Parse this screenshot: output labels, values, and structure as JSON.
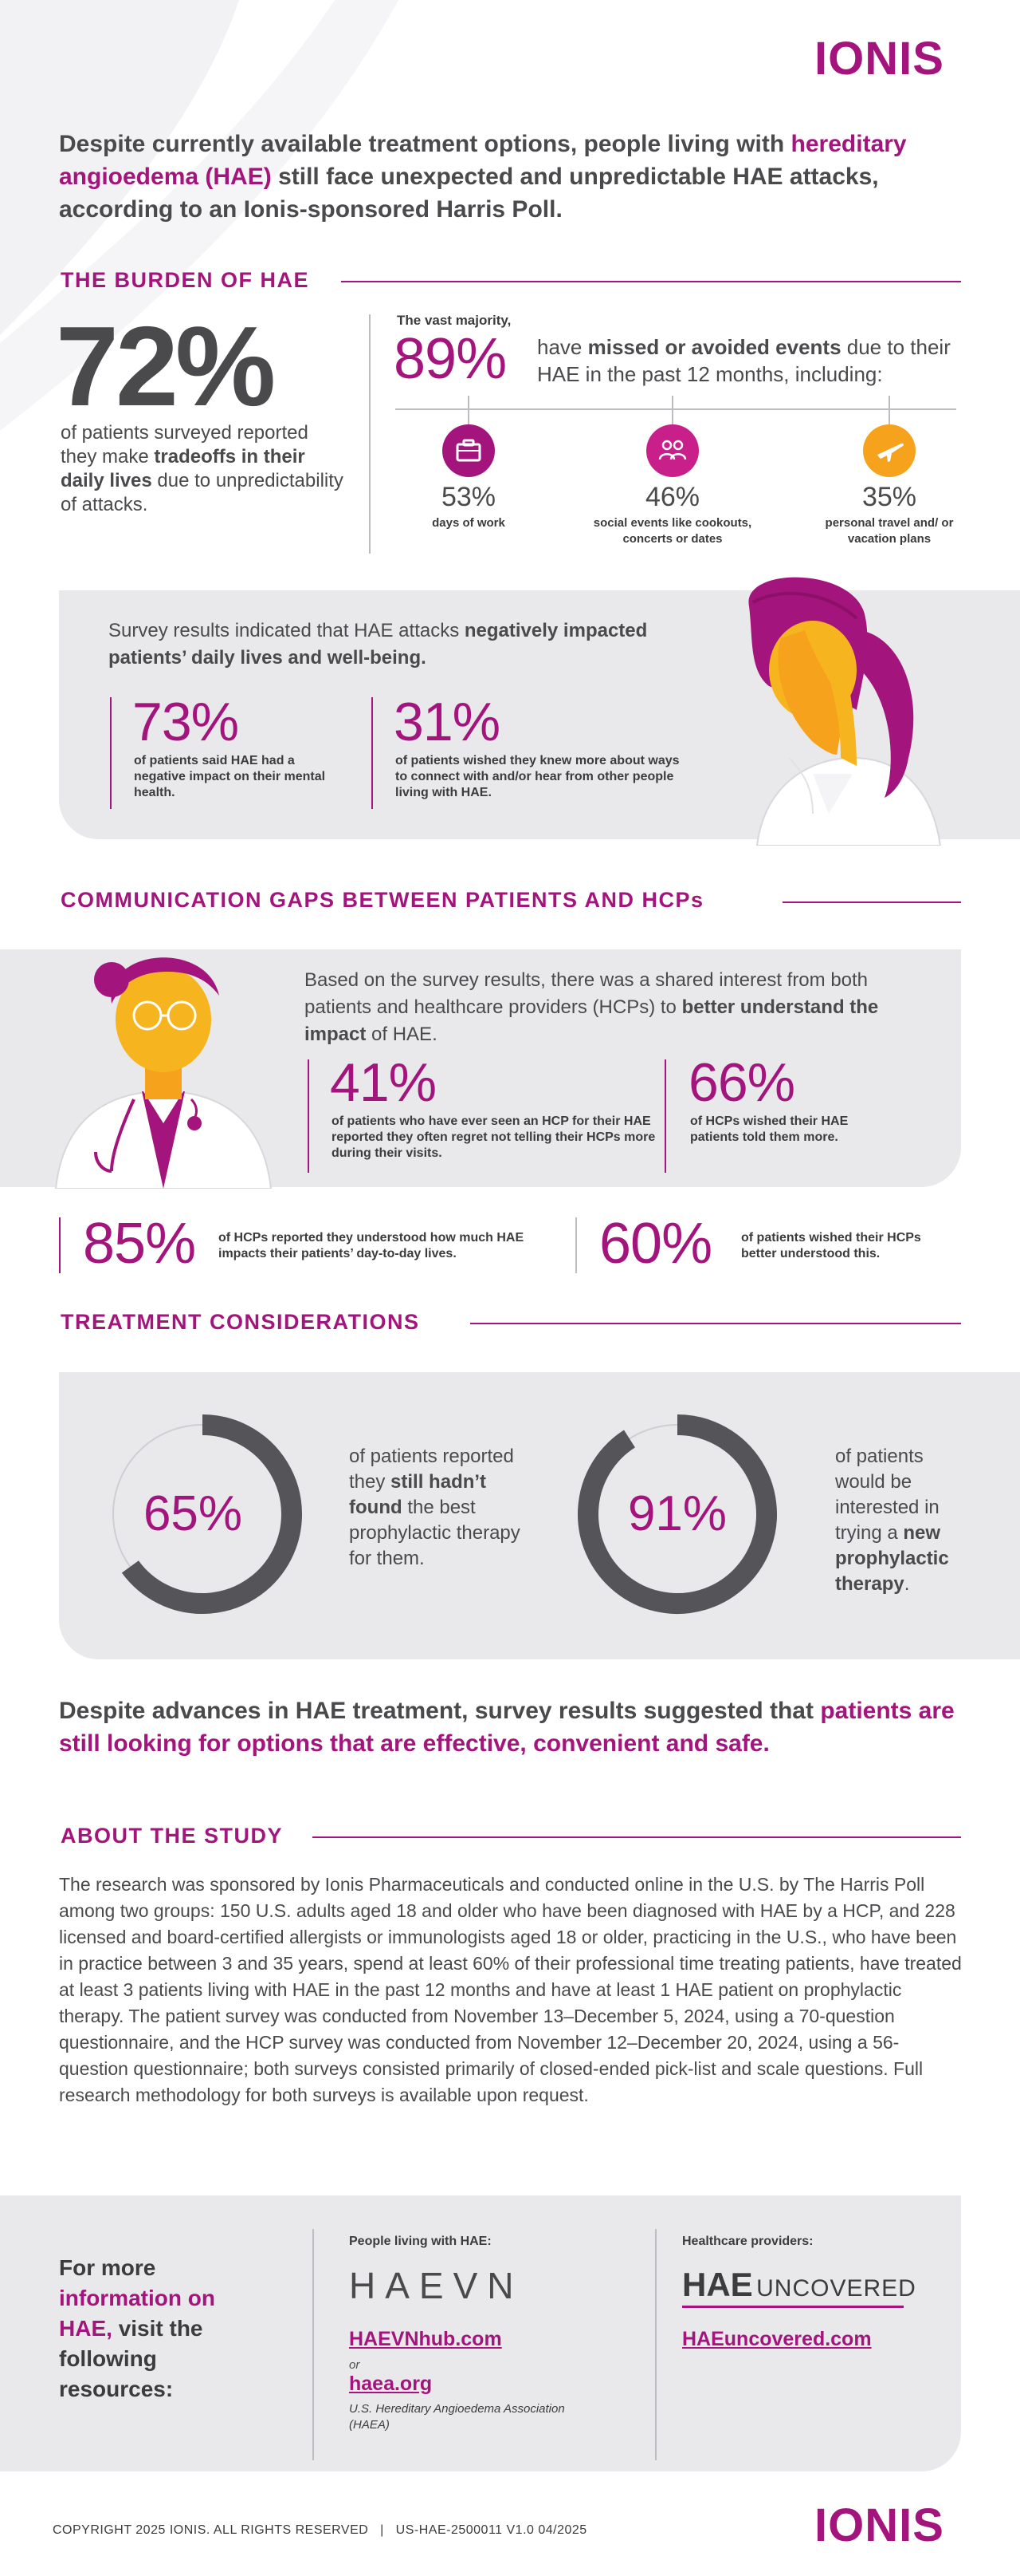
{
  "brand": {
    "logo": "IONIS",
    "accent": "#a3157c",
    "gray": "#555559",
    "panel": "#e9e9ec"
  },
  "intro": {
    "part1": "Despite currently available treatment options, people living with",
    "highlight": "hereditary angioedema (HAE)",
    "part2": "still face unexpected and unpredictable HAE attacks, according to an Ionis-sponsored Harris Poll."
  },
  "burden": {
    "title": "THE BURDEN OF HAE",
    "stat72": {
      "value": "72%",
      "text1": "of patients surveyed reported they make",
      "bold": "tradeoffs in their daily lives",
      "text2": "due to unpredictability of attacks."
    },
    "majority_label": "The vast majority,",
    "stat89": {
      "value": "89%",
      "text1": "have",
      "bold": "missed or avoided events",
      "text2": "due to their HAE in the past 12 months, including:"
    },
    "events": [
      {
        "icon": "briefcase-icon",
        "value": "53%",
        "label": "days of work",
        "color": "#a3157c"
      },
      {
        "icon": "people-icon",
        "value": "46%",
        "label": "social events like cookouts, concerts or dates",
        "color": "#c81f8a"
      },
      {
        "icon": "airplane-icon",
        "value": "35%",
        "label": "personal travel and/ or vacation plans",
        "color": "#f6a21c"
      }
    ],
    "survey_text1": "Survey results indicated that HAE attacks",
    "survey_bold": "negatively impacted patients’ daily lives and well-being.",
    "stat73": {
      "value": "73%",
      "label": "of patients said HAE had a negative impact on their mental health."
    },
    "stat31": {
      "value": "31%",
      "label": "of patients wished they knew more about ways to connect with and/or hear from other people living with HAE."
    }
  },
  "communication": {
    "title": "COMMUNICATION GAPS BETWEEN PATIENTS AND HCPs",
    "text1": "Based on the survey results, there was a shared interest from both patients and healthcare providers (HCPs) to",
    "bold": "better understand the impact",
    "text2": "of HAE.",
    "stat41": {
      "value": "41%",
      "label": "of patients who have ever seen an HCP for their HAE reported they often regret not telling their HCPs more during their visits."
    },
    "stat66": {
      "value": "66%",
      "label": "of HCPs wished their HAE patients told them more."
    },
    "stat85": {
      "value": "85%",
      "label": "of HCPs reported they understood how much HAE impacts their patients’ day-to-day lives."
    },
    "stat60": {
      "value": "60%",
      "label": "of patients wished their HCPs better understood this."
    }
  },
  "treatment": {
    "title": "TREATMENT CONSIDERATIONS",
    "donut65": {
      "value": "65%",
      "fraction": 0.65,
      "text1": "of patients reported they",
      "bold": "still hadn’t found",
      "text2": "the best prophylactic therapy for them."
    },
    "donut91": {
      "value": "91%",
      "fraction": 0.91,
      "text1": "of patients would be interested in trying a",
      "bold": "new prophylactic therapy",
      "text2": "."
    }
  },
  "conclusion": {
    "part1": "Despite advances in HAE treatment, survey results suggested that",
    "highlight": "patients are still looking for options that are effective, convenient and safe."
  },
  "study": {
    "title": "ABOUT THE STUDY",
    "body": "The research was sponsored by Ionis Pharmaceuticals and conducted online in the U.S. by The Harris Poll among two groups: 150 U.S. adults aged 18 and older who have been diagnosed with HAE by a HCP, and 228 licensed and board-certified allergists or immunologists aged 18 or older, practicing in the U.S., who have been in practice between 3 and 35 years, spend at least 60% of their professional time treating patients, have treated at least 3 patients living with HAE in the past 12 months and have at least 1 HAE patient on prophylactic therapy. The patient survey was conducted from November 13–December 5, 2024, using a 70-question questionnaire, and the HCP survey was conducted from November 12–December 20, 2024, using a 56-question questionnaire; both surveys consisted primarily of closed-ended pick-list and scale questions. Full research methodology for both surveys is available upon request."
  },
  "resources": {
    "lead1": "For more",
    "lead_bold": "information on HAE,",
    "lead2": "visit the following resources:",
    "patients_label": "People living with HAE:",
    "haevn_logo": "HAEVN",
    "haevn_link": "HAEVNhub.com",
    "or": "or",
    "haea_link": "haea.org",
    "haea_caption": "U.S. Hereditary Angioedema Association (HAEA)",
    "hcp_label": "Healthcare providers:",
    "uncovered_logo_a": "HAE",
    "uncovered_logo_b": "UNCOVERED",
    "uncovered_link": "HAEuncovered.com"
  },
  "footer": {
    "copyright": "COPYRIGHT 2025 IONIS. ALL RIGHTS RESERVED",
    "sep": "|",
    "code": "US-HAE-2500011 V1.0 04/2025",
    "logo": "IONIS"
  }
}
